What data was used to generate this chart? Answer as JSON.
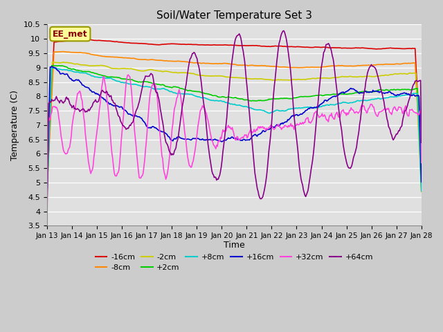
{
  "title": "Soil/Water Temperature Set 3",
  "xlabel": "Time",
  "ylabel": "Temperature (C)",
  "ylim": [
    3.5,
    10.5
  ],
  "yticks": [
    3.5,
    4.0,
    4.5,
    5.0,
    5.5,
    6.0,
    6.5,
    7.0,
    7.5,
    8.0,
    8.5,
    9.0,
    9.5,
    10.0,
    10.5
  ],
  "xtick_labels": [
    "Jan 13",
    "Jan 14",
    "Jan 15",
    "Jan 16",
    "Jan 17",
    "Jan 18",
    "Jan 19",
    "Jan 20",
    "Jan 21",
    "Jan 22",
    "Jan 23",
    "Jan 24",
    "Jan 25",
    "Jan 26",
    "Jan 27",
    "Jan 28"
  ],
  "annotation_text": "EE_met",
  "annotation_bbox_facecolor": "#ffff99",
  "annotation_bbox_edgecolor": "#999900",
  "series": [
    {
      "label": "-16cm",
      "color": "#dd0000",
      "lw": 1.2
    },
    {
      "label": "-8cm",
      "color": "#ff8800",
      "lw": 1.2
    },
    {
      "label": "-2cm",
      "color": "#cccc00",
      "lw": 1.2
    },
    {
      "label": "+2cm",
      "color": "#00cc00",
      "lw": 1.2
    },
    {
      "label": "+8cm",
      "color": "#00cccc",
      "lw": 1.2
    },
    {
      "label": "+16cm",
      "color": "#0000cc",
      "lw": 1.2
    },
    {
      "label": "+32cm",
      "color": "#ff44dd",
      "lw": 1.2
    },
    {
      "label": "+64cm",
      "color": "#880088",
      "lw": 1.2
    }
  ]
}
